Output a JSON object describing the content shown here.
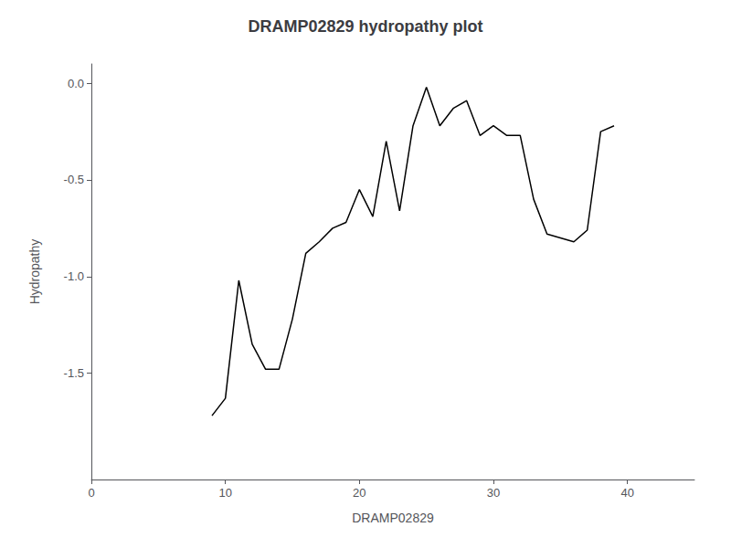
{
  "chart_data": {
    "type": "line",
    "title": "DRAMP02829 hydropathy plot",
    "xlabel": "DRAMP02829",
    "ylabel": "Hydropathy",
    "x": [
      9,
      10,
      11,
      12,
      13,
      14,
      15,
      16,
      17,
      18,
      19,
      20,
      21,
      22,
      23,
      24,
      25,
      26,
      27,
      28,
      29,
      30,
      31,
      32,
      33,
      34,
      35,
      36,
      37,
      38,
      39
    ],
    "values": [
      -1.72,
      -1.63,
      -1.02,
      -1.35,
      -1.48,
      -1.48,
      -1.22,
      -0.88,
      -0.82,
      -0.75,
      -0.72,
      -0.55,
      -0.69,
      -0.3,
      -0.66,
      -0.22,
      -0.02,
      -0.22,
      -0.13,
      -0.09,
      -0.27,
      -0.22,
      -0.27,
      -0.27,
      -0.6,
      -0.78,
      -0.8,
      -0.82,
      -0.76,
      -0.25,
      -0.22
    ],
    "color": "black",
    "xlim": [
      0,
      45
    ],
    "xticks": [
      0,
      10,
      20,
      30,
      40
    ],
    "ylim": [
      -2.05,
      0.1
    ],
    "yticks": [
      {
        "value": 0.0,
        "label": "0.0"
      },
      -0.5,
      {
        "value": -1.0,
        "label": "-1.0"
      },
      -1.5
    ],
    "grid": false
  }
}
